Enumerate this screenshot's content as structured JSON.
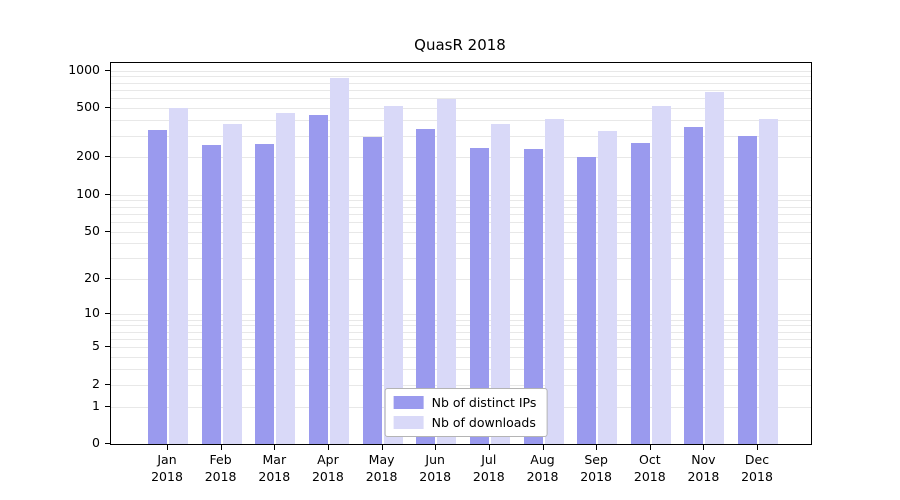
{
  "title": "QuasR 2018",
  "chart_data": {
    "type": "bar",
    "scale": "log1p",
    "title": "QuasR 2018",
    "categories": [
      "Jan",
      "Feb",
      "Mar",
      "Apr",
      "May",
      "Jun",
      "Jul",
      "Aug",
      "Sep",
      "Oct",
      "Nov",
      "Dec"
    ],
    "category_year": "2018",
    "series": [
      {
        "name": "Nb of distinct IPs",
        "color": "#9a9aee",
        "values": [
          330,
          250,
          255,
          440,
          290,
          340,
          240,
          235,
          200,
          260,
          350,
          295
        ]
      },
      {
        "name": "Nb of downloads",
        "color": "#d9d9f8",
        "values": [
          500,
          370,
          455,
          880,
          520,
          590,
          370,
          410,
          325,
          520,
          670,
          410
        ]
      }
    ],
    "y_ticks": [
      0,
      1,
      2,
      5,
      10,
      20,
      50,
      100,
      200,
      500,
      1000
    ],
    "minor_gridlines": [
      1,
      2,
      3,
      4,
      5,
      6,
      7,
      8,
      9,
      10,
      20,
      30,
      40,
      50,
      60,
      70,
      80,
      90,
      100,
      200,
      300,
      400,
      500,
      600,
      700,
      800,
      900,
      1000
    ],
    "ylim": [
      0,
      1150
    ],
    "grid": true,
    "legend_position": "lower center"
  }
}
